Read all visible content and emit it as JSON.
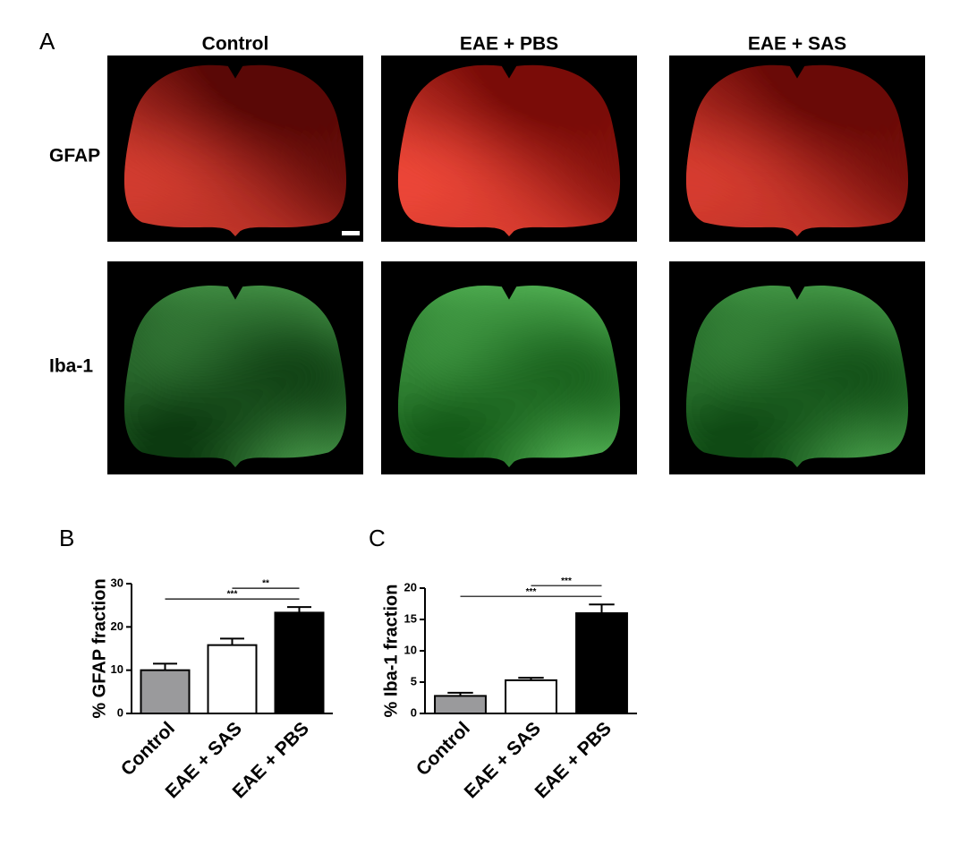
{
  "panel_a": {
    "label": "A",
    "columns": [
      "Control",
      "EAE + PBS",
      "EAE + SAS"
    ],
    "rows": [
      "GFAP",
      "Iba-1"
    ]
  },
  "chart_data": [
    {
      "type": "bar",
      "panel_label": "B",
      "y_label": "% GFAP fraction",
      "categories": [
        "Control",
        "EAE + SAS",
        "EAE + PBS"
      ],
      "values": [
        10,
        15.8,
        23.3
      ],
      "errors": [
        1.5,
        1.5,
        1.3
      ],
      "colors": [
        "#9a9a9c",
        "#ffffff",
        "#000000"
      ],
      "ylim": [
        0,
        30
      ],
      "yticks": [
        0,
        10,
        20,
        30
      ],
      "annotations": [
        {
          "text": "**",
          "between": [
            "EAE + SAS",
            "EAE + PBS"
          ]
        },
        {
          "text": "***",
          "between": [
            "Control",
            "EAE + PBS"
          ]
        }
      ]
    },
    {
      "type": "bar",
      "panel_label": "C",
      "y_label": "% Iba-1 fraction",
      "categories": [
        "Control",
        "EAE + SAS",
        "EAE + PBS"
      ],
      "values": [
        2.8,
        5.3,
        16
      ],
      "errors": [
        0.5,
        0.4,
        1.4
      ],
      "colors": [
        "#9a9a9c",
        "#ffffff",
        "#000000"
      ],
      "ylim": [
        0,
        20
      ],
      "yticks": [
        0,
        5,
        10,
        15,
        20
      ],
      "annotations": [
        {
          "text": "***",
          "between": [
            "EAE + SAS",
            "EAE + PBS"
          ]
        },
        {
          "text": "***",
          "between": [
            "Control",
            "EAE + PBS"
          ]
        }
      ]
    }
  ]
}
